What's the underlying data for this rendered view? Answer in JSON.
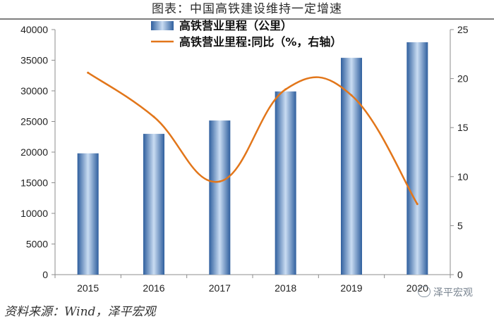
{
  "title": "图表：中国高铁建设维持一定增速",
  "source": "资料来源：Wind，泽平宏观",
  "watermark": "泽平宏观",
  "chart_data": {
    "type": "bar",
    "categories": [
      "2015",
      "2016",
      "2017",
      "2018",
      "2019",
      "2020"
    ],
    "series": [
      {
        "name": "高铁营业里程（公里）",
        "type": "bar",
        "axis": "left",
        "color": "#3d6fb5",
        "values": [
          19800,
          22980,
          25160,
          29904,
          35388,
          37929
        ]
      },
      {
        "name": "高铁营业里程:同比（%，右轴）",
        "type": "line",
        "axis": "right",
        "color": "#e2761a",
        "values": [
          20.6,
          16.1,
          9.5,
          18.9,
          18.3,
          7.2
        ]
      }
    ],
    "left_axis": {
      "min": 0,
      "max": 40000,
      "ticks": [
        "0",
        "5000",
        "10000",
        "15000",
        "20000",
        "25000",
        "30000",
        "35000",
        "40000"
      ]
    },
    "right_axis": {
      "min": 0,
      "max": 25,
      "ticks": [
        "0",
        "5",
        "10",
        "15",
        "20",
        "25"
      ]
    },
    "legend_position": "top-center",
    "grid": false
  }
}
